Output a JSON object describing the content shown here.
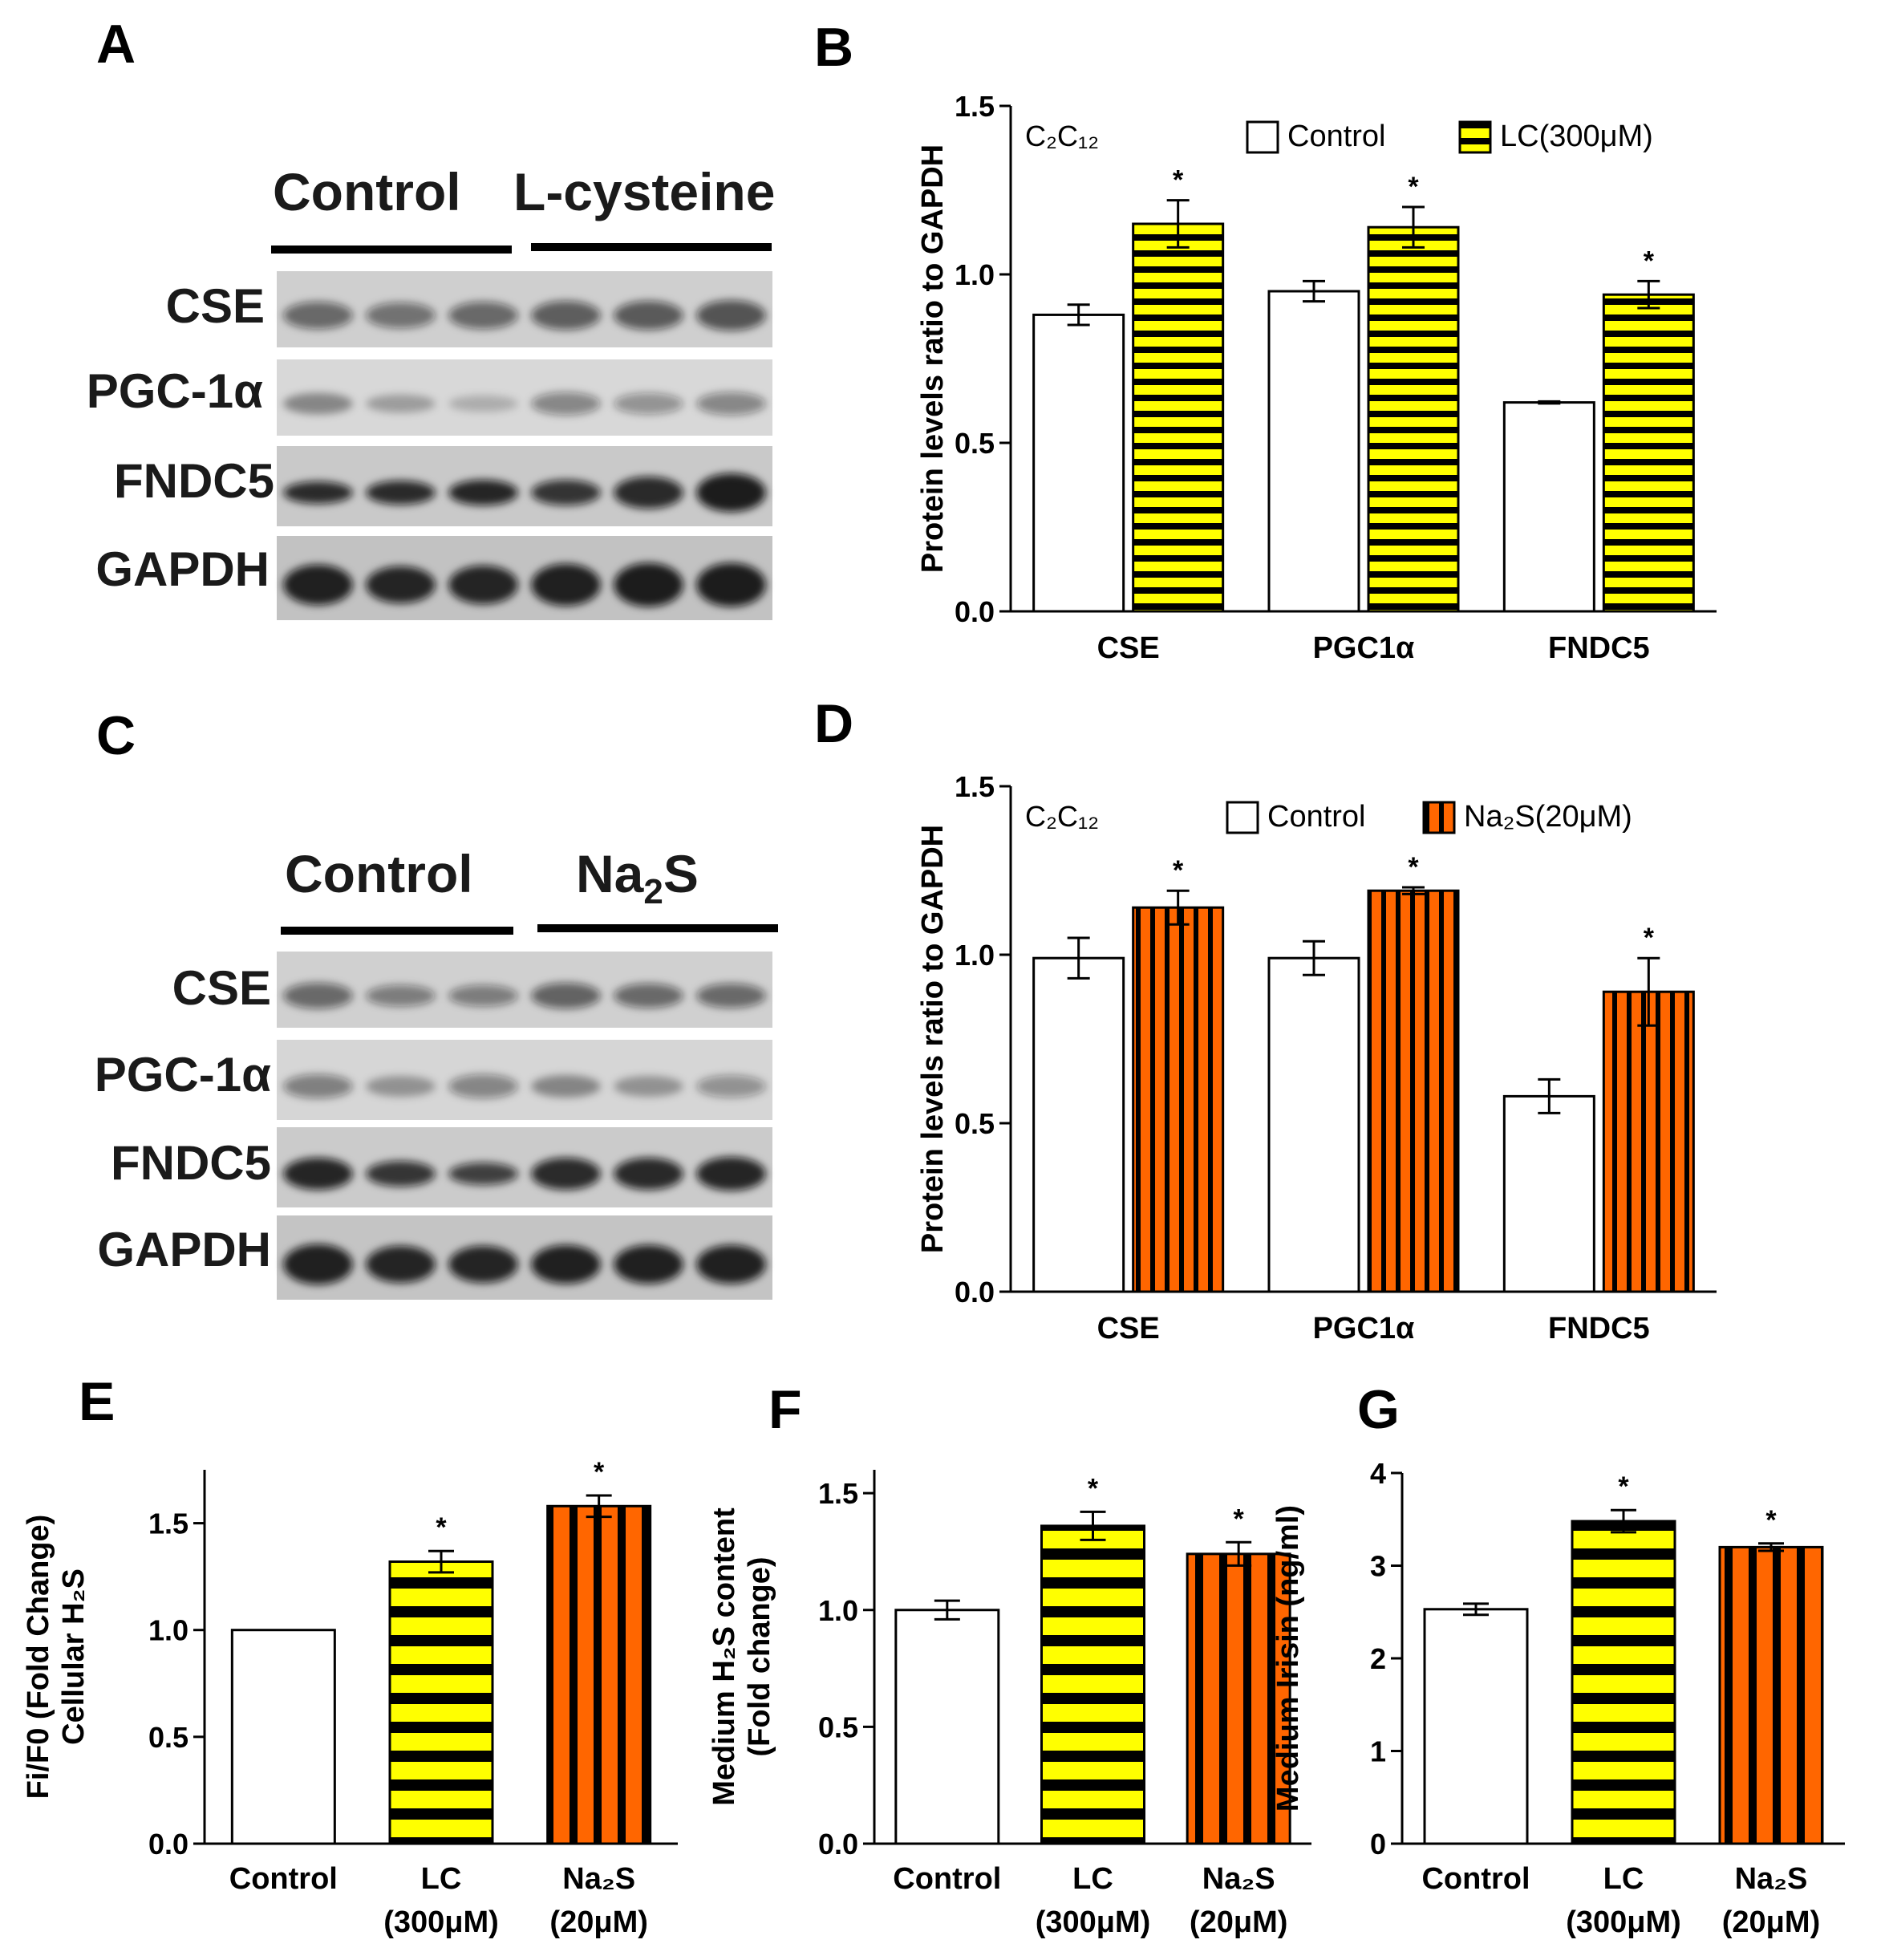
{
  "colors": {
    "control": "#ffffff",
    "lc": "#ffff00",
    "na2s": "#ff6600",
    "stripe": "#000000"
  },
  "blots": [
    {
      "panel": "A",
      "group1": "Control",
      "group2": "L-cysteine",
      "rows": [
        "CSE",
        "PGC-1α",
        "FNDC5",
        "GAPDH"
      ]
    },
    {
      "panel": "C",
      "group1": "Control",
      "group2": "Na",
      "group2_sub": "2",
      "group2_suffix": "S",
      "rows": [
        "CSE",
        "PGC-1α",
        "FNDC5",
        "GAPDH"
      ]
    }
  ],
  "chart_data": [
    {
      "panel": "B",
      "type": "bar",
      "inset_label": "C₂C₁₂",
      "ylabel": "Protein levels ratio to GAPDH",
      "ylim": [
        0,
        1.5
      ],
      "yticks": [
        "0.0",
        "0.5",
        "1.0",
        "1.5"
      ],
      "categories": [
        "CSE",
        "PGC1α",
        "FNDC5"
      ],
      "series": [
        {
          "name": "Control",
          "fill": "control",
          "values": [
            0.88,
            0.95,
            0.62
          ],
          "errors": [
            0.03,
            0.03,
            0.003
          ]
        },
        {
          "name": "LC(300μM)",
          "fill": "lc",
          "pattern": "horizontal",
          "values": [
            1.15,
            1.14,
            0.94
          ],
          "errors": [
            0.07,
            0.06,
            0.04
          ],
          "significance": [
            "*",
            "*",
            "*"
          ]
        }
      ],
      "legend": "top-right"
    },
    {
      "panel": "D",
      "type": "bar",
      "inset_label": "C₂C₁₂",
      "ylabel": "Protein levels ratio to GAPDH",
      "ylim": [
        0,
        1.5
      ],
      "yticks": [
        "0.0",
        "0.5",
        "1.0",
        "1.5"
      ],
      "categories": [
        "CSE",
        "PGC1α",
        "FNDC5"
      ],
      "series": [
        {
          "name": "Control",
          "fill": "control",
          "values": [
            0.99,
            0.99,
            0.58
          ],
          "errors": [
            0.06,
            0.05,
            0.05
          ]
        },
        {
          "name": "Na₂S(20μM)",
          "fill": "na2s",
          "pattern": "vertical",
          "values": [
            1.14,
            1.19,
            0.89
          ],
          "errors": [
            0.05,
            0.01,
            0.1
          ],
          "significance": [
            "*",
            "*",
            "*"
          ]
        }
      ],
      "legend": "top-right"
    },
    {
      "panel": "E",
      "type": "bar",
      "ylabel_lines": [
        "Fi/F0 (Fold Change)",
        "Cellular H₂S"
      ],
      "ylim": [
        0,
        1.75
      ],
      "yticks": [
        "0.0",
        "0.5",
        "1.0",
        "1.5"
      ],
      "categories": [
        {
          "line1": "Control",
          "line2": ""
        },
        {
          "line1": "LC",
          "line2": "(300μM)"
        },
        {
          "line1": "Na₂S",
          "line2": "(20μM)"
        }
      ],
      "values": [
        1.0,
        1.32,
        1.58
      ],
      "errors": [
        0.0,
        0.05,
        0.05
      ],
      "fills": [
        "control",
        "lc",
        "na2s"
      ],
      "patterns": [
        "none",
        "horizontal",
        "vertical"
      ],
      "significance": [
        "",
        "*",
        "*"
      ]
    },
    {
      "panel": "F",
      "type": "bar",
      "ylabel_lines": [
        "Medium H₂S content",
        "(Fold change)"
      ],
      "ylim": [
        0,
        1.6
      ],
      "yticks": [
        "0.0",
        "0.5",
        "1.0",
        "1.5"
      ],
      "categories": [
        {
          "line1": "Control",
          "line2": ""
        },
        {
          "line1": "LC",
          "line2": "(300μM)"
        },
        {
          "line1": "Na₂S",
          "line2": "(20μM)"
        }
      ],
      "values": [
        1.0,
        1.36,
        1.24
      ],
      "errors": [
        0.04,
        0.06,
        0.05
      ],
      "fills": [
        "control",
        "lc",
        "na2s"
      ],
      "patterns": [
        "none",
        "horizontal",
        "vertical"
      ],
      "significance": [
        "",
        "*",
        "*"
      ]
    },
    {
      "panel": "G",
      "type": "bar",
      "ylabel_lines": [
        "Medium Irisin (ng/ml)"
      ],
      "ylim": [
        0,
        4
      ],
      "yticks": [
        "0",
        "1",
        "2",
        "3",
        "4"
      ],
      "categories": [
        {
          "line1": "Control",
          "line2": ""
        },
        {
          "line1": "LC",
          "line2": "(300μM)"
        },
        {
          "line1": "Na₂S",
          "line2": "(20μM)"
        }
      ],
      "values": [
        2.53,
        3.48,
        3.2
      ],
      "errors": [
        0.06,
        0.12,
        0.04
      ],
      "fills": [
        "control",
        "lc",
        "na2s"
      ],
      "patterns": [
        "none",
        "horizontal",
        "vertical"
      ],
      "significance": [
        "",
        "*",
        "*"
      ]
    }
  ]
}
